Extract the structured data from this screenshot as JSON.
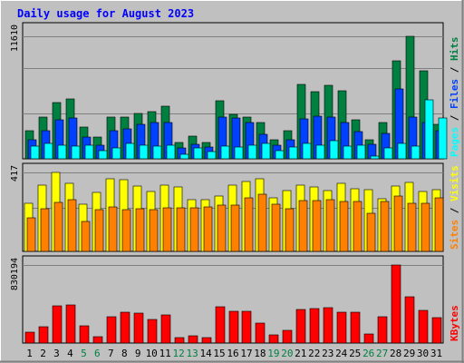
{
  "chart_data": {
    "type": "bar",
    "title": "Daily usage for August 2023",
    "categories": [
      "1",
      "2",
      "3",
      "4",
      "5",
      "6",
      "7",
      "8",
      "9",
      "10",
      "11",
      "12",
      "13",
      "14",
      "15",
      "16",
      "17",
      "18",
      "19",
      "20",
      "21",
      "22",
      "23",
      "24",
      "25",
      "26",
      "27",
      "28",
      "29",
      "30",
      "31"
    ],
    "weekend_days": [
      "5",
      "6",
      "12",
      "13",
      "19",
      "20",
      "26",
      "27"
    ],
    "colors": {
      "background": "#c0c0c0",
      "title": "#0000ff",
      "hits": "#008040",
      "files": "#0040ff",
      "pages": "#00ffff",
      "visits": "#ffff00",
      "sites": "#ff8000",
      "kbytes": "#ff0000",
      "weekday_label": "#000000",
      "weekend_label": "#008040"
    },
    "panels": [
      {
        "id": "top",
        "ymax_label": "11610",
        "ymax": 11610,
        "legend": [
          {
            "text": "Pages",
            "color": "#00ffff"
          },
          {
            "text": " / ",
            "color": "#000000"
          },
          {
            "text": "Files",
            "color": "#0040ff"
          },
          {
            "text": " / ",
            "color": "#000000"
          },
          {
            "text": "Hits",
            "color": "#008040"
          }
        ],
        "series": [
          {
            "name": "Hits",
            "color": "#008040",
            "values": [
              2670,
              3940,
              5340,
              5660,
              3040,
              2100,
              3940,
              3920,
              4320,
              4430,
              4980,
              1540,
              2170,
              1560,
              5500,
              4220,
              3940,
              3400,
              1780,
              2660,
              7020,
              6360,
              7000,
              6460,
              3660,
              1770,
              3400,
              9280,
              11610,
              8300,
              3270
            ]
          },
          {
            "name": "Files",
            "color": "#0040ff",
            "values": [
              1770,
              2670,
              3700,
              3860,
              2040,
              1260,
              2650,
              2860,
              3230,
              3430,
              3480,
              1020,
              1400,
              1080,
              3940,
              3870,
              3430,
              2290,
              1260,
              1840,
              3770,
              4030,
              3960,
              3440,
              2540,
              1380,
              2370,
              6650,
              3940,
              3470,
              2690
            ]
          },
          {
            "name": "Pages",
            "color": "#00ffff",
            "values": [
              1170,
              1480,
              1290,
              1210,
              1260,
              760,
              1070,
              1440,
              1260,
              1230,
              1270,
              420,
              1030,
              730,
              1180,
              1150,
              1290,
              1420,
              790,
              1080,
              1470,
              1270,
              1760,
              1180,
              1270,
              260,
              1040,
              1420,
              1220,
              5620,
              3910
            ]
          }
        ]
      },
      {
        "id": "middle",
        "ymax_label": "417",
        "ymax": 417,
        "legend": [
          {
            "text": "Sites",
            "color": "#ff8000"
          },
          {
            "text": " / ",
            "color": "#000000"
          },
          {
            "text": "Visits",
            "color": "#ffff00"
          }
        ],
        "series": [
          {
            "name": "Visits",
            "color": "#ffff00",
            "values": [
              255,
              350,
              417,
              360,
              250,
              310,
              380,
              375,
              345,
              315,
              347,
              340,
              270,
              272,
              290,
              350,
              370,
              380,
              280,
              320,
              350,
              340,
              320,
              360,
              330,
              326,
              275,
              345,
              365,
              315,
              327
            ]
          },
          {
            "name": "Sites",
            "color": "#ff8000",
            "values": [
              177,
              224,
              258,
              270,
              160,
              218,
              236,
              222,
              225,
              220,
              228,
              228,
              228,
              235,
              245,
              242,
              283,
              300,
              250,
              225,
              267,
              267,
              270,
              262,
              262,
              200,
              262,
              290,
              253,
              252,
              282
            ]
          }
        ]
      },
      {
        "id": "bottom",
        "ymax_label": "830194",
        "ymax": 830194,
        "legend": [
          {
            "text": "KBytes",
            "color": "#ff0000"
          }
        ],
        "series": [
          {
            "name": "KBytes",
            "color": "#ff0000",
            "values": [
              116000,
              177000,
              391000,
              407000,
              184000,
              70000,
              278000,
              326000,
              320000,
              248000,
              301000,
              55000,
              80000,
              56000,
              386000,
              340000,
              333000,
              210000,
              86000,
              139000,
              360000,
              369000,
              372000,
              330000,
              322000,
              94000,
              275000,
              830194,
              492000,
              345000,
              271000
            ]
          }
        ]
      }
    ],
    "grid": true,
    "xlabel": "",
    "ylabel": ""
  }
}
